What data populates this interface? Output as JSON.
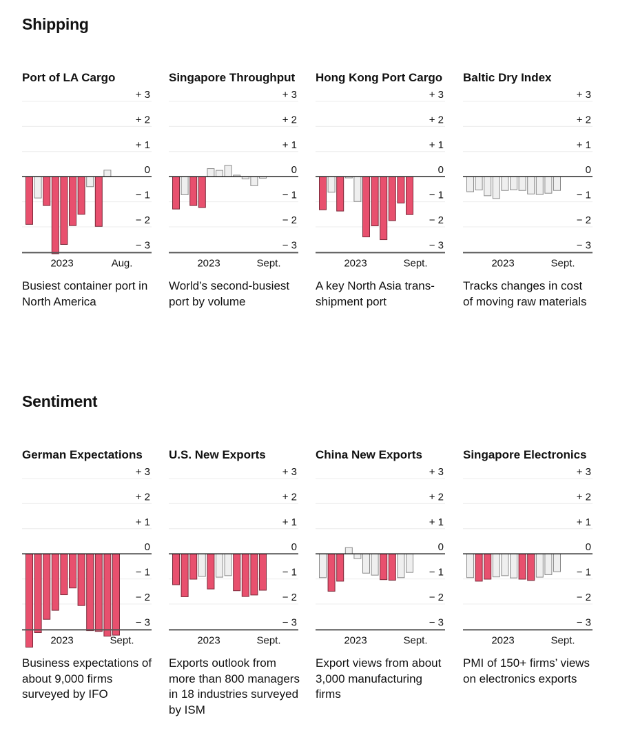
{
  "colors": {
    "highlight_fill": "#e8506e",
    "highlight_stroke": "#7a2a3a",
    "neutral_fill": "#efefef",
    "neutral_stroke": "#8a8a8a",
    "gridline": "#ececec",
    "zero_line": "#111111",
    "axis_line": "#555555"
  },
  "sections": [
    {
      "title": "Shipping",
      "panels": [
        {
          "title": "Port of LA Cargo",
          "description": "Busiest container port in North America",
          "x_labels": [
            "2023",
            "Aug."
          ]
        },
        {
          "title": "Singapore Throughput",
          "description": "World’s second-busiest port by volume",
          "x_labels": [
            "2023",
            "Sept."
          ]
        },
        {
          "title": "Hong Kong Port Cargo",
          "description": "A key North Asia trans-shipment port",
          "x_labels": [
            "2023",
            "Sept."
          ]
        },
        {
          "title": "Baltic Dry Index",
          "description": "Tracks changes in cost of moving raw materials",
          "x_labels": [
            "2023",
            "Sept."
          ]
        }
      ]
    },
    {
      "title": "Sentiment",
      "panels": [
        {
          "title": "German Expectations",
          "description": "Business expectations of about 9,000 firms surveyed by IFO",
          "x_labels": [
            "2023",
            "Sept."
          ]
        },
        {
          "title": "U.S. New Exports",
          "description": "Exports outlook from more than 800 managers in 18 industries surveyed by ISM",
          "x_labels": [
            "2023",
            "Sept."
          ]
        },
        {
          "title": "China New Exports",
          "description": "Export views from about 3,000 manufacturing firms",
          "x_labels": [
            "2023",
            "Sept."
          ]
        },
        {
          "title": "Singapore Electronics",
          "description": "PMI of 150+ firms’ views on electronics exports",
          "x_labels": [
            "2023",
            "Sept."
          ]
        }
      ]
    }
  ],
  "chart_data": [
    {
      "type": "bar",
      "section": "Shipping",
      "title": "Port of LA Cargo",
      "ylim": [
        -3,
        3
      ],
      "yticks": [
        "+ 3",
        "+ 2",
        "+ 1",
        "0",
        "− 1",
        "− 2",
        "− 3"
      ],
      "ytick_values": [
        3,
        2,
        1,
        0,
        -1,
        -2,
        -3
      ],
      "xticks": [
        "2023",
        "Aug."
      ],
      "grid": true,
      "values": [
        -1.9,
        -0.85,
        -1.15,
        -3.07,
        -2.7,
        -1.95,
        -1.5,
        -0.4,
        -1.98,
        0.26
      ],
      "highlighted": [
        true,
        false,
        true,
        true,
        true,
        true,
        true,
        false,
        true,
        false
      ]
    },
    {
      "type": "bar",
      "section": "Shipping",
      "title": "Singapore Throughput",
      "ylim": [
        -3,
        3
      ],
      "yticks": [
        "+ 3",
        "+ 2",
        "+ 1",
        "0",
        "− 1",
        "− 2",
        "− 3"
      ],
      "ytick_values": [
        3,
        2,
        1,
        0,
        -1,
        -2,
        -3
      ],
      "xticks": [
        "2023",
        "Sept."
      ],
      "grid": true,
      "values": [
        -1.29,
        -0.72,
        -1.15,
        -1.23,
        0.32,
        0.25,
        0.45,
        0.06,
        -0.09,
        -0.36,
        -0.06
      ],
      "highlighted": [
        true,
        false,
        true,
        true,
        false,
        false,
        false,
        false,
        false,
        false,
        false
      ]
    },
    {
      "type": "bar",
      "section": "Shipping",
      "title": "Hong Kong Port Cargo",
      "ylim": [
        -3,
        3
      ],
      "yticks": [
        "+ 3",
        "+ 2",
        "+ 1",
        "0",
        "− 1",
        "− 2",
        "− 3"
      ],
      "ytick_values": [
        3,
        2,
        1,
        0,
        -1,
        -2,
        -3
      ],
      "xticks": [
        "2023",
        "Sept."
      ],
      "grid": true,
      "values": [
        -1.32,
        -0.62,
        -1.37,
        -0.05,
        -0.99,
        -2.4,
        -1.96,
        -2.51,
        -1.75,
        -1.05,
        -1.51
      ],
      "highlighted": [
        true,
        false,
        true,
        false,
        false,
        true,
        true,
        true,
        true,
        true,
        true
      ]
    },
    {
      "type": "bar",
      "section": "Shipping",
      "title": "Baltic Dry Index",
      "ylim": [
        -3,
        3
      ],
      "yticks": [
        "+ 3",
        "+ 2",
        "+ 1",
        "0",
        "− 1",
        "− 2",
        "− 3"
      ],
      "ytick_values": [
        3,
        2,
        1,
        0,
        -1,
        -2,
        -3
      ],
      "xticks": [
        "2023",
        "Sept."
      ],
      "grid": true,
      "values": [
        -0.6,
        -0.53,
        -0.76,
        -0.87,
        -0.55,
        -0.52,
        -0.55,
        -0.69,
        -0.71,
        -0.66,
        -0.55
      ],
      "highlighted": [
        false,
        false,
        false,
        false,
        false,
        false,
        false,
        false,
        false,
        false,
        false
      ]
    },
    {
      "type": "bar",
      "section": "Sentiment",
      "title": "German Expectations",
      "ylim": [
        -3,
        3
      ],
      "yticks": [
        "+ 3",
        "+ 2",
        "+ 1",
        "0",
        "− 1",
        "− 2",
        "− 3"
      ],
      "ytick_values": [
        3,
        2,
        1,
        0,
        -1,
        -2,
        -3
      ],
      "xticks": [
        "2023",
        "Sept."
      ],
      "grid": true,
      "values": [
        -3.72,
        -3.14,
        -2.61,
        -2.25,
        -1.63,
        -1.36,
        -2.06,
        -3.06,
        -3.09,
        -3.28,
        -3.24
      ],
      "highlighted": [
        true,
        true,
        true,
        true,
        true,
        true,
        true,
        true,
        true,
        true,
        true
      ]
    },
    {
      "type": "bar",
      "section": "Sentiment",
      "title": "U.S. New Exports",
      "ylim": [
        -3,
        3
      ],
      "yticks": [
        "+ 3",
        "+ 2",
        "+ 1",
        "0",
        "− 1",
        "− 2",
        "− 3"
      ],
      "ytick_values": [
        3,
        2,
        1,
        0,
        -1,
        -2,
        -3
      ],
      "xticks": [
        "2023",
        "Sept."
      ],
      "grid": true,
      "values": [
        -1.23,
        -1.71,
        -1.01,
        -0.9,
        -1.4,
        -0.93,
        -0.87,
        -1.47,
        -1.7,
        -1.64,
        -1.45
      ],
      "highlighted": [
        true,
        true,
        true,
        false,
        true,
        false,
        false,
        true,
        true,
        true,
        true
      ]
    },
    {
      "type": "bar",
      "section": "Sentiment",
      "title": "China New Exports",
      "ylim": [
        -3,
        3
      ],
      "yticks": [
        "+ 3",
        "+ 2",
        "+ 1",
        "0",
        "− 1",
        "− 2",
        "− 3"
      ],
      "ytick_values": [
        3,
        2,
        1,
        0,
        -1,
        -2,
        -3
      ],
      "xticks": [
        "2023",
        "Sept."
      ],
      "grid": true,
      "values": [
        -0.95,
        -1.49,
        -1.09,
        0.25,
        -0.19,
        -0.77,
        -0.85,
        -1.03,
        -1.05,
        -0.95,
        -0.74
      ],
      "highlighted": [
        false,
        true,
        true,
        false,
        false,
        false,
        false,
        true,
        true,
        false,
        false
      ]
    },
    {
      "type": "bar",
      "section": "Sentiment",
      "title": "Singapore Electronics",
      "ylim": [
        -3,
        3
      ],
      "yticks": [
        "+ 3",
        "+ 2",
        "+ 1",
        "0",
        "− 1",
        "− 2",
        "− 3"
      ],
      "ytick_values": [
        3,
        2,
        1,
        0,
        -1,
        -2,
        -3
      ],
      "xticks": [
        "2023",
        "Sept."
      ],
      "grid": true,
      "values": [
        -0.95,
        -1.09,
        -1.01,
        -0.92,
        -0.87,
        -0.96,
        -1.01,
        -1.06,
        -0.93,
        -0.83,
        -0.71
      ],
      "highlighted": [
        false,
        true,
        true,
        false,
        false,
        false,
        true,
        true,
        false,
        false,
        false
      ]
    }
  ]
}
